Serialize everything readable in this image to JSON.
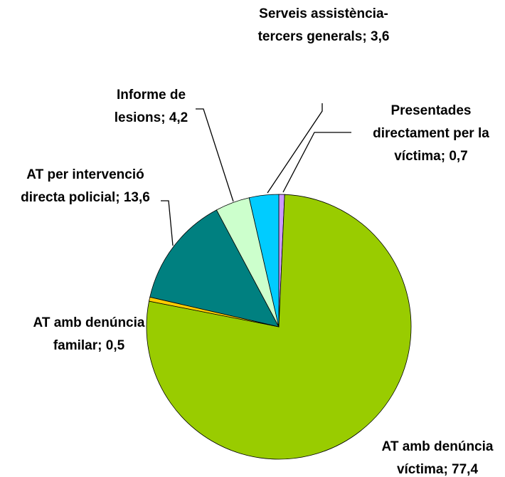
{
  "chart_data": {
    "type": "pie",
    "categories": [
      "Presentades directament per la víctima",
      "AT amb denúncia víctima",
      "AT amb denúncia familar",
      "AT per intervenció directa policial",
      "Informe de lesions",
      "Serveis assistència-tercers generals"
    ],
    "values": [
      0.7,
      77.4,
      0.5,
      13.6,
      4.2,
      3.6
    ],
    "value_labels": [
      "0,7",
      "77,4",
      "0,5",
      "13,6",
      "4,2",
      "3,6"
    ],
    "separator": ";",
    "colors": [
      "#cc99ff",
      "#99cc00",
      "#ffcc00",
      "#008080",
      "#ccffcc",
      "#00ccff"
    ]
  }
}
